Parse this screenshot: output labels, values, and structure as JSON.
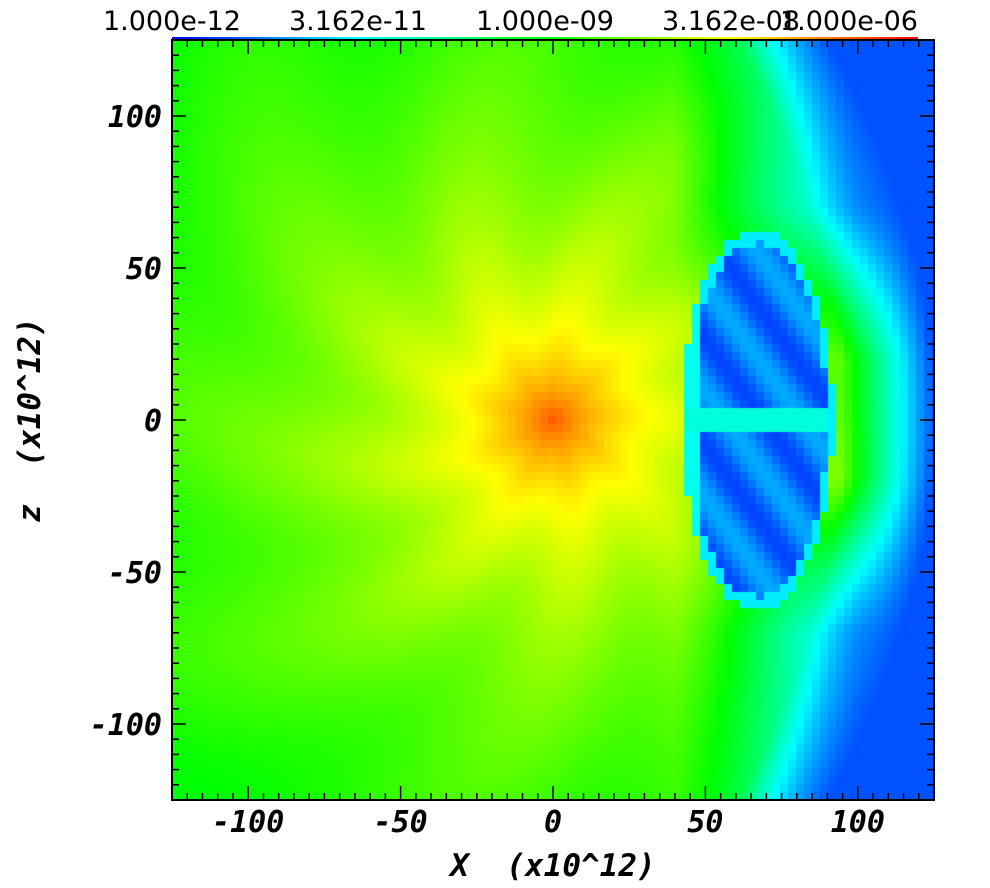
{
  "chart_data": {
    "type": "heatmap",
    "title": "",
    "xlabel": "X  (x10^12)",
    "ylabel": "z  (x10^12)",
    "xlim": [
      -125,
      125
    ],
    "ylim": [
      -125,
      125
    ],
    "xticks": [
      -100,
      -50,
      0,
      50,
      100
    ],
    "xtick_labels": [
      "-100",
      "-50",
      "0",
      "50",
      "100"
    ],
    "yticks": [
      100,
      50,
      0,
      -50,
      -100
    ],
    "ytick_labels": [
      "100",
      "50",
      "0",
      "-50",
      "-100"
    ],
    "colorbar": {
      "placement": "top",
      "scale": "log",
      "range": [
        1e-12,
        1e-06
      ],
      "tick_values": [
        1e-12,
        3.162e-11,
        1e-09,
        3.162e-08,
        1e-06
      ],
      "tick_labels": [
        "1.000e-12",
        "3.162e-11",
        "1.000e-09",
        "3.162e-08",
        "1.000e-06"
      ],
      "colormap": [
        "#0000ff",
        "#00ffff",
        "#00ff00",
        "#ffff00",
        "#ff0000"
      ]
    },
    "field_features": {
      "peak": {
        "x": 0,
        "z": 0,
        "value": 3e-07
      },
      "cavity": {
        "x_range": [
          45,
          90
        ],
        "z_range": [
          -58,
          58
        ],
        "value": 5e-12
      },
      "right_edge_value": 3e-12
    }
  }
}
